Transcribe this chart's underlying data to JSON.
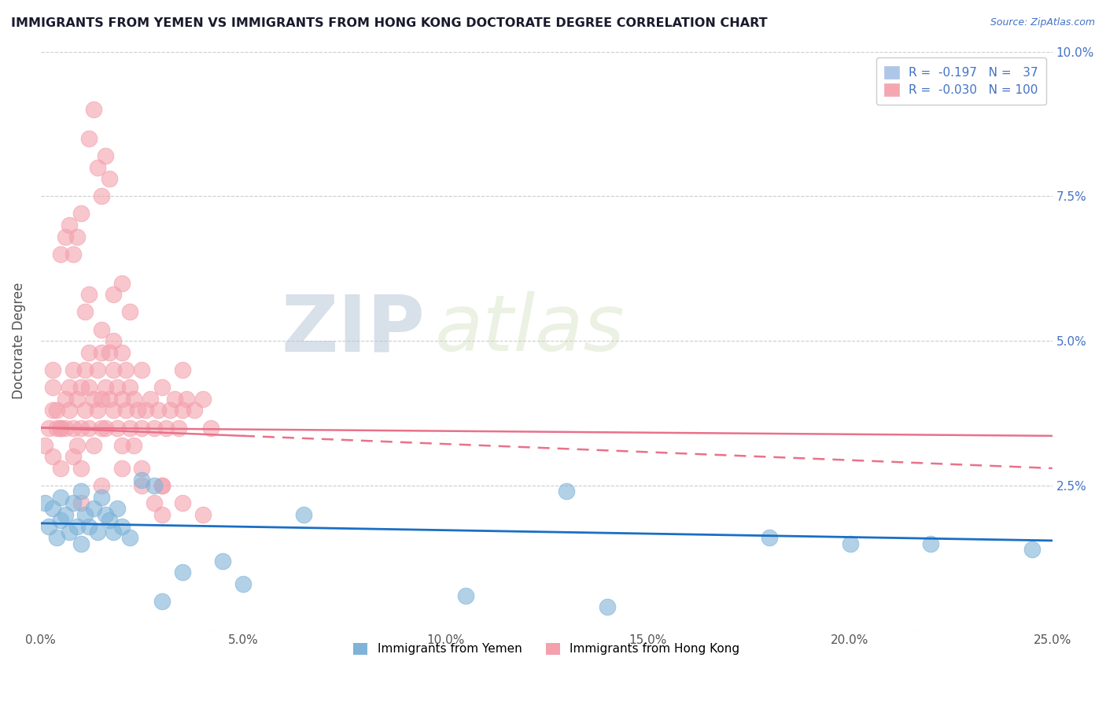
{
  "title": "IMMIGRANTS FROM YEMEN VS IMMIGRANTS FROM HONG KONG DOCTORATE DEGREE CORRELATION CHART",
  "source": "Source: ZipAtlas.com",
  "ylabel": "Doctorate Degree",
  "x_tick_labels": [
    "0.0%",
    "5.0%",
    "10.0%",
    "15.0%",
    "20.0%",
    "25.0%"
  ],
  "x_tick_vals": [
    0.0,
    5.0,
    10.0,
    15.0,
    20.0,
    25.0
  ],
  "y_tick_labels": [
    "",
    "2.5%",
    "5.0%",
    "7.5%",
    "10.0%"
  ],
  "y_tick_vals": [
    0.0,
    2.5,
    5.0,
    7.5,
    10.0
  ],
  "xlim": [
    0,
    25
  ],
  "ylim": [
    0,
    10
  ],
  "legend_entries": [
    {
      "label": "R =  -0.197   N =   37",
      "color": "#aec6e8"
    },
    {
      "label": "R =  -0.030   N = 100",
      "color": "#f4a7b0"
    }
  ],
  "legend_labels_bottom": [
    "Immigrants from Yemen",
    "Immigrants from Hong Kong"
  ],
  "series_yemen": {
    "color": "#7fb3d8",
    "trend_color": "#1a6fc4",
    "x": [
      0.1,
      0.2,
      0.3,
      0.4,
      0.5,
      0.5,
      0.6,
      0.7,
      0.8,
      0.9,
      1.0,
      1.0,
      1.1,
      1.2,
      1.3,
      1.4,
      1.5,
      1.6,
      1.7,
      1.8,
      1.9,
      2.0,
      2.2,
      2.5,
      2.8,
      3.0,
      3.5,
      4.5,
      5.0,
      6.5,
      10.5,
      13.0,
      14.0,
      18.0,
      20.0,
      22.0,
      24.5
    ],
    "y": [
      2.2,
      1.8,
      2.1,
      1.6,
      2.3,
      1.9,
      2.0,
      1.7,
      2.2,
      1.8,
      2.4,
      1.5,
      2.0,
      1.8,
      2.1,
      1.7,
      2.3,
      2.0,
      1.9,
      1.7,
      2.1,
      1.8,
      1.6,
      2.6,
      2.5,
      0.5,
      1.0,
      1.2,
      0.8,
      2.0,
      0.6,
      2.4,
      0.4,
      1.6,
      1.5,
      1.5,
      1.4
    ],
    "trend_x": [
      0,
      25
    ],
    "trend_y": [
      1.85,
      1.55
    ]
  },
  "series_hongkong": {
    "color": "#f4a0ad",
    "trend_color": "#e8728a",
    "x": [
      0.1,
      0.2,
      0.3,
      0.3,
      0.4,
      0.5,
      0.5,
      0.6,
      0.6,
      0.7,
      0.7,
      0.8,
      0.8,
      0.8,
      0.9,
      0.9,
      1.0,
      1.0,
      1.0,
      1.1,
      1.1,
      1.2,
      1.2,
      1.2,
      1.3,
      1.3,
      1.4,
      1.4,
      1.5,
      1.5,
      1.5,
      1.6,
      1.6,
      1.7,
      1.7,
      1.8,
      1.8,
      1.8,
      1.9,
      1.9,
      2.0,
      2.0,
      2.1,
      2.1,
      2.2,
      2.2,
      2.3,
      2.3,
      2.4,
      2.5,
      2.5,
      2.6,
      2.7,
      2.8,
      2.9,
      3.0,
      3.1,
      3.2,
      3.3,
      3.4,
      3.5,
      3.5,
      3.6,
      3.8,
      4.0,
      4.2,
      0.5,
      0.6,
      0.7,
      0.8,
      0.9,
      1.0,
      1.1,
      1.2,
      1.5,
      1.8,
      2.0,
      2.2,
      2.5,
      2.8,
      3.0,
      1.2,
      1.3,
      1.4,
      1.5,
      1.6,
      1.7,
      0.3,
      0.4,
      2.0,
      2.5,
      3.0,
      3.5,
      1.0,
      1.5,
      0.5,
      0.3,
      2.0,
      3.0,
      4.0
    ],
    "y": [
      3.2,
      3.5,
      3.0,
      4.2,
      3.8,
      3.5,
      2.8,
      3.5,
      4.0,
      3.8,
      4.2,
      3.0,
      3.5,
      4.5,
      3.2,
      4.0,
      3.5,
      4.2,
      2.8,
      4.5,
      3.8,
      3.5,
      4.2,
      4.8,
      4.0,
      3.2,
      3.8,
      4.5,
      3.5,
      4.0,
      4.8,
      4.2,
      3.5,
      4.0,
      4.8,
      3.8,
      4.5,
      5.0,
      4.2,
      3.5,
      4.0,
      4.8,
      3.8,
      4.5,
      4.2,
      3.5,
      4.0,
      3.2,
      3.8,
      4.5,
      3.5,
      3.8,
      4.0,
      3.5,
      3.8,
      4.2,
      3.5,
      3.8,
      4.0,
      3.5,
      3.8,
      4.5,
      4.0,
      3.8,
      4.0,
      3.5,
      6.5,
      6.8,
      7.0,
      6.5,
      6.8,
      7.2,
      5.5,
      5.8,
      5.2,
      5.8,
      6.0,
      5.5,
      2.5,
      2.2,
      2.0,
      8.5,
      9.0,
      8.0,
      7.5,
      8.2,
      7.8,
      3.8,
      3.5,
      3.2,
      2.8,
      2.5,
      2.2,
      2.2,
      2.5,
      3.5,
      4.5,
      2.8,
      2.5,
      2.0
    ],
    "trend_x": [
      0,
      25
    ],
    "trend_y": [
      3.5,
      2.8
    ]
  },
  "watermark_text": "ZIP",
  "watermark_text2": "atlas",
  "background_color": "#ffffff",
  "grid_color": "#cccccc",
  "title_color": "#1a1a2e",
  "ylabel_color": "#555555",
  "tick_label_color_right": "#4472c4",
  "source_color": "#4472c4"
}
